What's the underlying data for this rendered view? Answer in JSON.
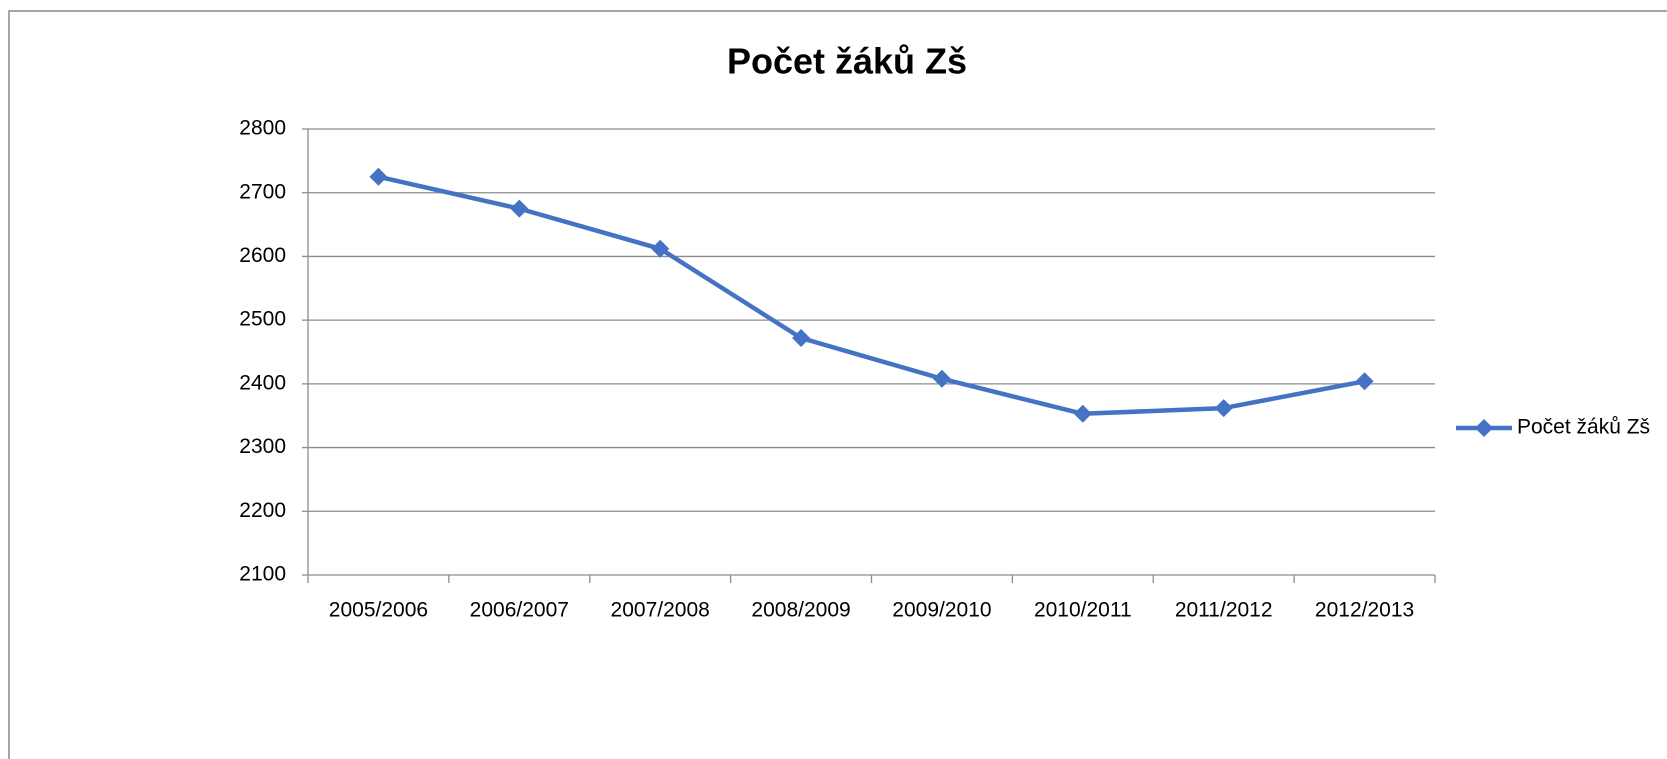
{
  "chart_data": {
    "type": "line",
    "title": "Počet žáků Zš",
    "categories": [
      "2005/2006",
      "2006/2007",
      "2007/2008",
      "2008/2009",
      "2009/2010",
      "2010/2011",
      "2011/2012",
      "2012/2013"
    ],
    "series": [
      {
        "name": "Počet žáků Zš",
        "color": "#4472c4",
        "values": [
          2725,
          2675,
          2612,
          2472,
          2408,
          2353,
          2362,
          2404
        ]
      }
    ],
    "ylim": [
      2100,
      2800
    ],
    "yticks": [
      2100,
      2200,
      2300,
      2400,
      2500,
      2600,
      2700,
      2800
    ],
    "grid": true,
    "legend": "right"
  }
}
